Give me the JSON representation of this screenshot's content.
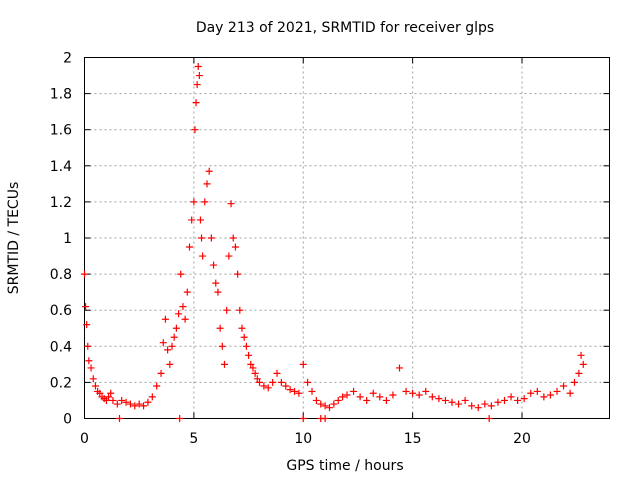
{
  "chart_data": {
    "type": "scatter",
    "title": "Day 213 of 2021, SRMTID for receiver glps",
    "xlabel": "GPS time / hours",
    "ylabel": "SRMTID / TECUs",
    "xlim": [
      0,
      24
    ],
    "ylim": [
      0,
      2
    ],
    "x_ticks": [
      "0",
      "5",
      "10",
      "15",
      "20"
    ],
    "y_ticks": [
      "0",
      "0.2",
      "0.4",
      "0.6",
      "0.8",
      "1",
      "1.2",
      "1.4",
      "1.6",
      "1.8",
      "2"
    ],
    "grid": true,
    "marker": "+",
    "color": "#ff0000",
    "series": [
      {
        "name": "SRMTID",
        "x": [
          0.0,
          0.05,
          0.1,
          0.15,
          0.2,
          0.3,
          0.4,
          0.5,
          0.6,
          0.7,
          0.8,
          0.9,
          1.0,
          1.1,
          1.2,
          1.3,
          1.5,
          1.7,
          1.9,
          2.1,
          2.3,
          2.5,
          2.7,
          2.9,
          3.1,
          3.3,
          3.5,
          3.6,
          3.7,
          3.8,
          3.9,
          4.0,
          4.1,
          4.2,
          4.3,
          4.4,
          4.5,
          4.6,
          4.7,
          4.8,
          4.9,
          5.0,
          5.05,
          5.1,
          5.15,
          5.2,
          5.25,
          5.3,
          5.35,
          5.4,
          5.5,
          5.6,
          5.7,
          5.8,
          5.9,
          6.0,
          6.1,
          6.2,
          6.3,
          6.4,
          6.5,
          6.6,
          6.7,
          6.8,
          6.9,
          7.0,
          7.1,
          7.2,
          7.3,
          7.4,
          7.5,
          7.6,
          7.7,
          7.8,
          7.9,
          8.0,
          8.2,
          8.4,
          8.6,
          8.8,
          9.0,
          9.2,
          9.4,
          9.6,
          9.8,
          10.0,
          10.2,
          10.4,
          10.6,
          10.8,
          11.0,
          11.2,
          11.4,
          11.6,
          11.8,
          12.0,
          12.3,
          12.6,
          12.9,
          13.2,
          13.5,
          13.8,
          14.1,
          14.4,
          14.7,
          15.0,
          15.3,
          15.6,
          15.9,
          16.2,
          16.5,
          16.8,
          17.1,
          17.4,
          17.7,
          18.0,
          18.3,
          18.6,
          18.9,
          19.2,
          19.5,
          19.8,
          20.1,
          20.4,
          20.7,
          21.0,
          21.3,
          21.6,
          21.9,
          22.2,
          22.4,
          22.6,
          22.7,
          22.8,
          1.6,
          4.35,
          10.0,
          10.8,
          11.0,
          18.5
        ],
        "y": [
          0.8,
          0.62,
          0.52,
          0.4,
          0.32,
          0.28,
          0.22,
          0.18,
          0.15,
          0.14,
          0.12,
          0.11,
          0.1,
          0.12,
          0.14,
          0.1,
          0.08,
          0.1,
          0.09,
          0.08,
          0.07,
          0.08,
          0.07,
          0.09,
          0.12,
          0.18,
          0.25,
          0.42,
          0.55,
          0.38,
          0.3,
          0.4,
          0.45,
          0.5,
          0.58,
          0.8,
          0.62,
          0.55,
          0.7,
          0.95,
          1.1,
          1.2,
          1.6,
          1.75,
          1.85,
          1.95,
          1.9,
          1.1,
          1.0,
          0.9,
          1.2,
          1.3,
          1.37,
          1.0,
          0.85,
          0.75,
          0.7,
          0.5,
          0.4,
          0.3,
          0.6,
          0.9,
          1.19,
          1.0,
          0.95,
          0.8,
          0.6,
          0.5,
          0.45,
          0.4,
          0.35,
          0.3,
          0.28,
          0.25,
          0.22,
          0.2,
          0.18,
          0.17,
          0.2,
          0.25,
          0.2,
          0.18,
          0.16,
          0.15,
          0.14,
          0.3,
          0.2,
          0.15,
          0.1,
          0.08,
          0.07,
          0.06,
          0.08,
          0.1,
          0.12,
          0.13,
          0.15,
          0.12,
          0.1,
          0.14,
          0.12,
          0.1,
          0.13,
          0.28,
          0.15,
          0.14,
          0.13,
          0.15,
          0.12,
          0.11,
          0.1,
          0.09,
          0.08,
          0.1,
          0.07,
          0.06,
          0.08,
          0.07,
          0.09,
          0.1,
          0.12,
          0.1,
          0.11,
          0.14,
          0.15,
          0.12,
          0.13,
          0.15,
          0.18,
          0.14,
          0.2,
          0.25,
          0.35,
          0.3,
          0.0,
          0.0,
          0.0,
          0.0,
          0.0,
          0.0
        ]
      }
    ]
  }
}
